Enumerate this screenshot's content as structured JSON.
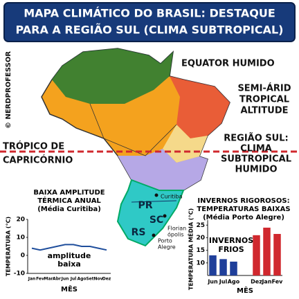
{
  "header": {
    "title_lines": [
      "MAPA CLIMÁTICO DO BRASIL: DESTAQUE",
      "PARA A REGIÃO SUL (CLIMA SUBTROPICAL)"
    ]
  },
  "watermark": "© NERDPROFESSOR",
  "labels": {
    "equatorial": [
      "EQUATOR HUMIDO"
    ],
    "semiarid": [
      "SEMI-ÁRID",
      "TROPICAL",
      "ALTITUDE"
    ],
    "tropic": [
      "TRÓPICO DE",
      "CAPRICÓRNIO"
    ],
    "south": [
      "REGIÃO SUL:",
      "CLIMA",
      "SUBTROPICAL",
      "HUMIDO"
    ],
    "amplitude": [
      "BAIXA AMPLITUDE",
      "TÉRMICA ANUAL",
      "(Média Curitiba)"
    ],
    "winters": [
      "INVERNOS RIGOROSOS:",
      "TEMPERATURAS BAIXAS",
      "(Média Porto Alegre)"
    ]
  },
  "states": [
    "PR",
    "SC",
    "RS"
  ],
  "cities": {
    "curitiba": [
      "Curitiba"
    ],
    "florianopolis": [
      "Florian",
      "ópolis"
    ],
    "porto_alegre": [
      "Porto",
      "Alegre"
    ]
  },
  "chart_data": [
    {
      "type": "line",
      "ylabel": "TEMPERATURA (°C)",
      "xlabel": "MÊS",
      "categories": [
        "Jan",
        "Fev",
        "Mar",
        "Abr",
        "Jun",
        "Jul",
        "Ago",
        "Set",
        "Nov",
        "Dez"
      ],
      "values": [
        4,
        3,
        4,
        5,
        6,
        6,
        5,
        5,
        4,
        3
      ],
      "color": "#1f4e9c",
      "ylim": [
        -10,
        20
      ],
      "yticks": [
        -10,
        0,
        10,
        20
      ],
      "annotation": [
        "amplitude",
        "baixa"
      ]
    },
    {
      "type": "bar",
      "ylabel": "TEMPERATURA MÉDIA (°C)",
      "xlabel": "MÊS",
      "categories": [
        "Jun",
        "Jul",
        "Ago",
        "Dez",
        "Jan",
        "Fev"
      ],
      "values": [
        13,
        11.5,
        10.5,
        21,
        24,
        21.5
      ],
      "colors": [
        "#1f3f9a",
        "#1f3f9a",
        "#1f3f9a",
        "#d0282e",
        "#d0282e",
        "#d0282e"
      ],
      "ylim": [
        5,
        27
      ],
      "yticks": [
        10,
        15,
        20,
        25
      ],
      "annotation": [
        "INVERNOS",
        "FRIOS"
      ]
    }
  ]
}
